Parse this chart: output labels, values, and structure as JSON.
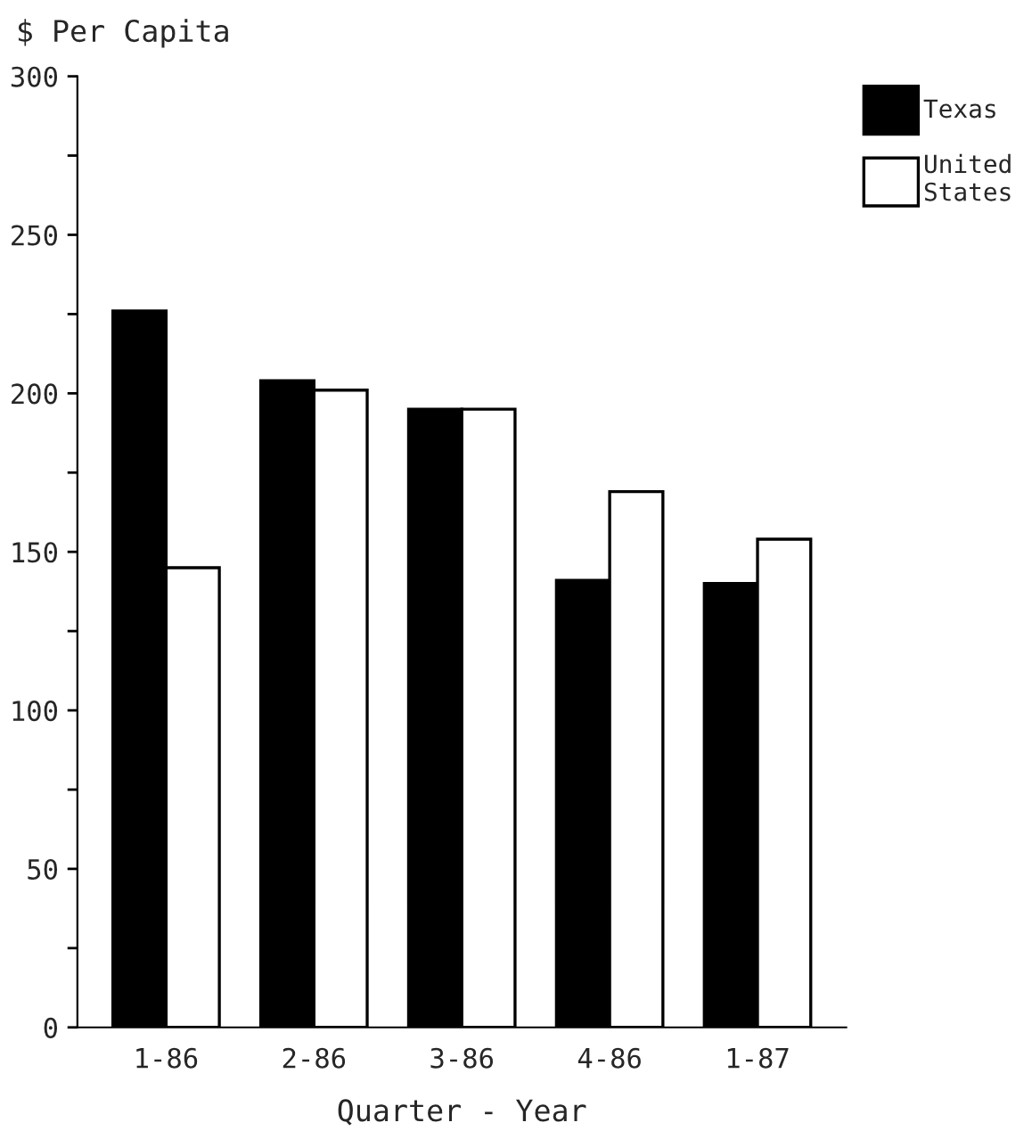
{
  "chart_data": {
    "type": "bar",
    "ylabel": "$ Per Capita",
    "xlabel": "Quarter - Year",
    "categories": [
      "1-86",
      "2-86",
      "3-86",
      "4-86",
      "1-87"
    ],
    "series": [
      {
        "name": "Texas",
        "color": "#000000",
        "values": [
          226,
          204,
          195,
          141,
          140
        ]
      },
      {
        "name": "United\nStates",
        "color": "#ffffff",
        "values": [
          145,
          201,
          195,
          169,
          154
        ]
      }
    ],
    "ylim": [
      0,
      300
    ],
    "yticks": [
      0,
      {
        "value": 25,
        "label": null
      },
      50,
      {
        "value": 75,
        "label": null
      },
      100,
      {
        "value": 125,
        "label": null
      },
      150,
      {
        "value": 175,
        "label": null
      },
      200,
      {
        "value": 225,
        "label": null
      },
      250,
      {
        "value": 275,
        "label": null
      },
      300
    ],
    "grid": false,
    "legend": "top right"
  }
}
